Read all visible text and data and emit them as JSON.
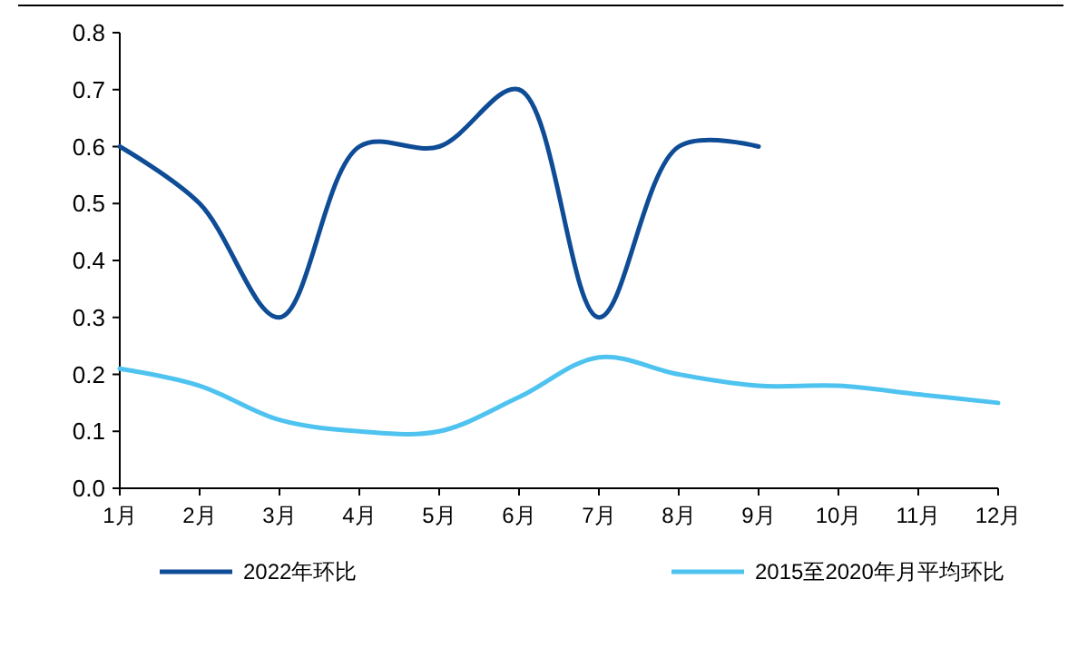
{
  "chart_data": {
    "type": "line",
    "categories": [
      "1月",
      "2月",
      "3月",
      "4月",
      "5月",
      "6月",
      "7月",
      "8月",
      "9月",
      "10月",
      "11月",
      "12月"
    ],
    "series": [
      {
        "name": "2022年环比",
        "color": "#0f4c96",
        "values": [
          0.6,
          0.5,
          0.3,
          0.6,
          0.6,
          0.7,
          0.3,
          0.6,
          0.6,
          null,
          null,
          null
        ]
      },
      {
        "name": "2015至2020年月平均环比",
        "color": "#4fc3f0",
        "values": [
          0.21,
          0.18,
          0.12,
          0.1,
          0.1,
          0.16,
          0.23,
          0.2,
          0.18,
          0.18,
          0.165,
          0.15
        ]
      }
    ],
    "ylim": [
      0,
      0.8
    ],
    "yticks": [
      {
        "value": 0,
        "label": "0.0"
      },
      0.1,
      0.2,
      0.3,
      0.4,
      0.5,
      0.6,
      0.7,
      0.8
    ],
    "grid": false,
    "legend": "bottom",
    "marker": "none",
    "line_style": "solid"
  }
}
